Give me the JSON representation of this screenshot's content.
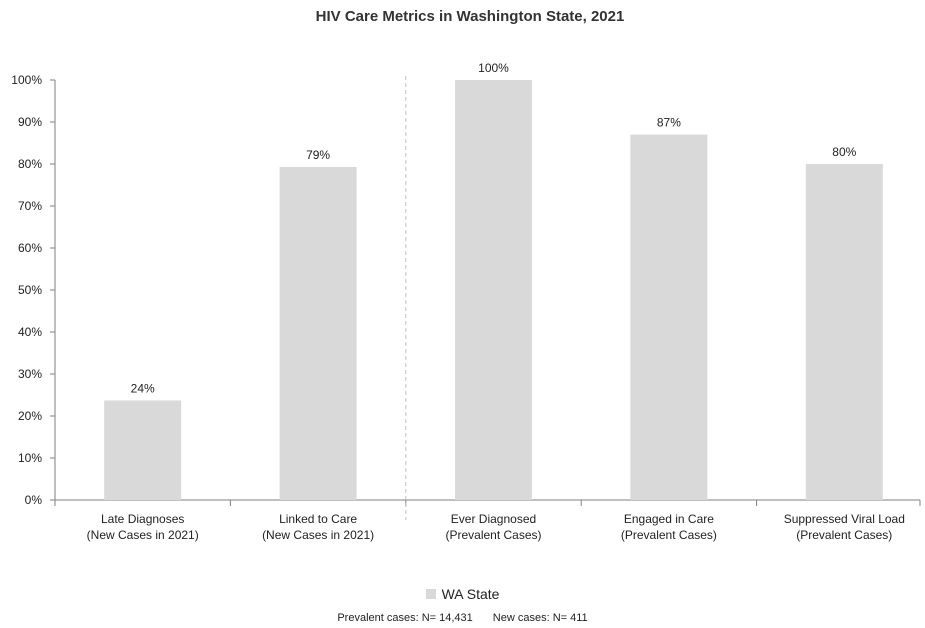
{
  "chart_data": {
    "type": "bar",
    "title": "HIV Care Metrics in Washington State, 2021",
    "xlabel": "",
    "ylabel": "",
    "ylim": [
      0,
      100
    ],
    "yticks": [
      "0%",
      "10%",
      "20%",
      "30%",
      "40%",
      "50%",
      "60%",
      "70%",
      "80%",
      "90%",
      "100%"
    ],
    "categories": [
      [
        "Late Diagnoses",
        "(New Cases in 2021)"
      ],
      [
        "Linked to Care",
        "(New Cases in 2021)"
      ],
      [
        "Ever Diagnosed",
        "(Prevalent Cases)"
      ],
      [
        "Engaged in Care",
        "(Prevalent Cases)"
      ],
      [
        "Suppressed Viral Load",
        "(Prevalent Cases)"
      ]
    ],
    "series": [
      {
        "name": "WA State",
        "values": [
          23.7,
          79.3,
          100,
          87,
          80
        ],
        "data_labels": [
          "24%",
          "79%",
          "100%",
          "87%",
          "80%"
        ],
        "color": "#d9d9d9"
      }
    ],
    "divider_after_category": 2,
    "grid": false,
    "legend_position": "bottom"
  },
  "footnote": {
    "prevalent": "Prevalent cases: N= 14,431",
    "new": "New cases: N= 411"
  }
}
